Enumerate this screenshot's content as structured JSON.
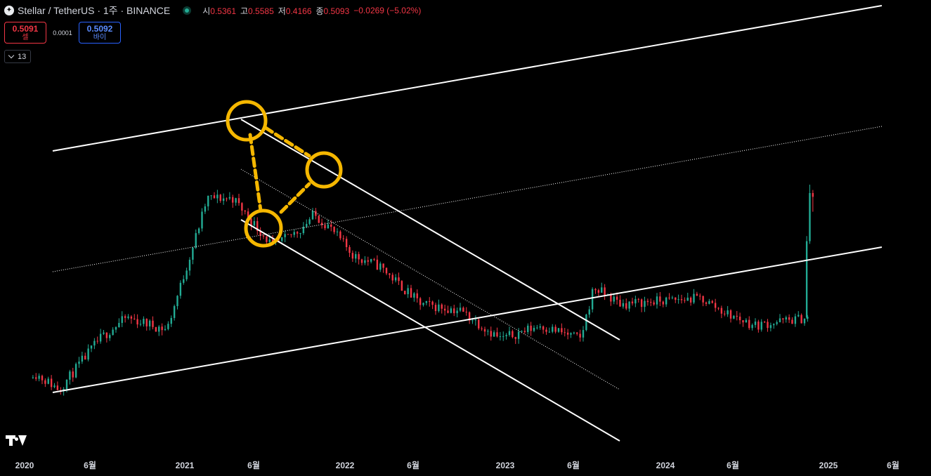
{
  "header": {
    "logo_glyph": "✦",
    "title": "Stellar / TetherUS · 1주 · BINANCE",
    "ohlc": [
      {
        "label": "시",
        "value": "0.5361"
      },
      {
        "label": "고",
        "value": "0.5585"
      },
      {
        "label": "저",
        "value": "0.4166"
      },
      {
        "label": "종",
        "value": "0.5093"
      }
    ],
    "change": "−0.0269 (−5.02%)"
  },
  "trade": {
    "sell_price": "0.5091",
    "sell_label": "셀",
    "spread": "0.0001",
    "buy_price": "0.5092",
    "buy_label": "바이"
  },
  "indicator_count": "13",
  "colors": {
    "up": "#22ab94",
    "down": "#f23645",
    "background": "#000000",
    "drawing": "#ffffff",
    "highlight": "#f5b700"
  },
  "chart_data": {
    "type": "candlestick",
    "symbol": "XLMUSDT",
    "interval": "1 week",
    "x_ticks": [
      "2020",
      "6월",
      "2021",
      "6월",
      "2022",
      "6월",
      "2023",
      "6월",
      "2024",
      "6월",
      "2025",
      "6월"
    ],
    "close_path": [
      [
        "2020-01",
        0.048
      ],
      [
        "2020-03",
        0.038
      ],
      [
        "2020-06",
        0.075
      ],
      [
        "2020-08",
        0.1
      ],
      [
        "2020-11",
        0.085
      ],
      [
        "2021-01",
        0.27
      ],
      [
        "2021-02",
        0.5
      ],
      [
        "2021-04",
        0.5
      ],
      [
        "2021-05",
        0.4
      ],
      [
        "2021-07",
        0.26
      ],
      [
        "2021-09",
        0.33
      ],
      [
        "2021-10",
        0.4
      ],
      [
        "2021-11",
        0.35
      ],
      [
        "2022-01",
        0.23
      ],
      [
        "2022-03",
        0.2
      ],
      [
        "2022-06",
        0.12
      ],
      [
        "2022-09",
        0.11
      ],
      [
        "2022-12",
        0.075
      ],
      [
        "2023-03",
        0.09
      ],
      [
        "2023-06",
        0.075
      ],
      [
        "2023-07",
        0.15
      ],
      [
        "2023-09",
        0.12
      ],
      [
        "2023-12",
        0.125
      ],
      [
        "2024-03",
        0.13
      ],
      [
        "2024-05",
        0.105
      ],
      [
        "2024-07",
        0.09
      ],
      [
        "2024-09",
        0.095
      ],
      [
        "2024-11",
        0.1
      ],
      [
        "2024-11-18",
        0.42
      ],
      [
        "2024-11-25",
        0.5093
      ]
    ],
    "last_candle": {
      "open": 0.5361,
      "high": 0.5585,
      "low": 0.4166,
      "close": 0.5093
    },
    "drawings": [
      {
        "type": "trend-channel",
        "style": "solid",
        "note": "long-term ascending channel from 2020 low"
      },
      {
        "type": "trend-line",
        "style": "dotted",
        "note": "ascending channel midline"
      },
      {
        "type": "trend-channel",
        "style": "solid",
        "note": "descending channel from 2021 high"
      },
      {
        "type": "trend-line",
        "style": "dotted",
        "note": "descending channel midline"
      },
      {
        "type": "circle",
        "color": "highlight",
        "count": 3,
        "note": "pivot points at channel touches"
      },
      {
        "type": "dashed-path",
        "color": "highlight",
        "note": "connects pivot points"
      }
    ]
  }
}
